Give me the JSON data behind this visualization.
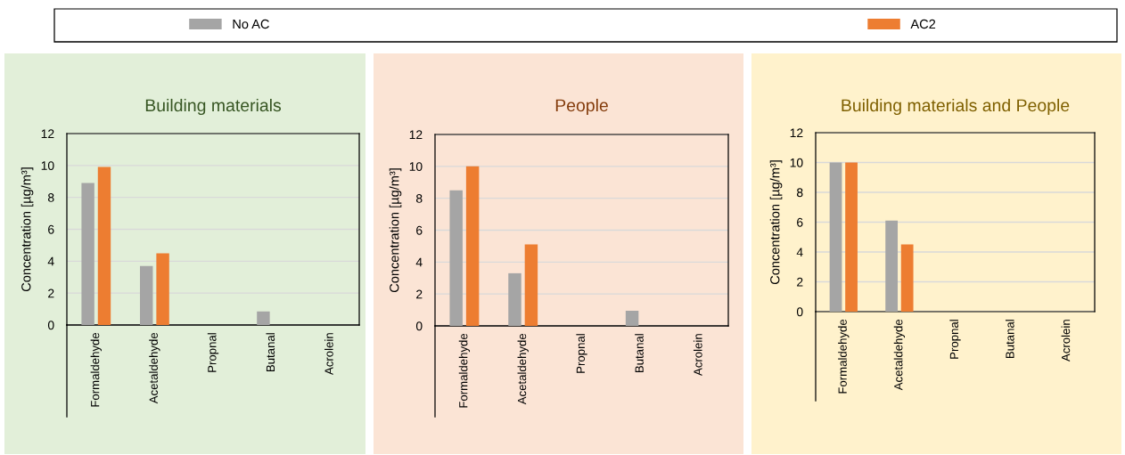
{
  "chart_data": [
    {
      "type": "bar",
      "title": "Building materials",
      "ylabel": "Concentration [µg/m³]",
      "categories": [
        "Formaldehyde",
        "Acetaldehyde",
        "Propnal",
        "Butanal",
        "Acrolein"
      ],
      "series": [
        {
          "name": "No AC",
          "color": "#a5a5a5",
          "values": [
            8.9,
            3.7,
            0,
            0.85,
            0
          ]
        },
        {
          "name": "AC2",
          "color": "#ed7d31",
          "values": [
            9.9,
            4.5,
            0,
            0,
            0
          ]
        }
      ],
      "ylim": [
        0,
        12
      ],
      "yticks": [
        0,
        2,
        4,
        6,
        8,
        10,
        12
      ],
      "grid": "y",
      "legend": "top"
    },
    {
      "type": "bar",
      "title": "People",
      "ylabel": "Concentration [µg/m³]",
      "categories": [
        "Formaldehyde",
        "Acetaldehyde",
        "Propnal",
        "Butanal",
        "Acrolein"
      ],
      "series": [
        {
          "color": "#a5a5a5",
          "values": [
            8.5,
            3.3,
            0,
            0.95,
            0
          ]
        },
        {
          "color": "#ed7d31",
          "values": [
            10,
            5.1,
            0,
            0,
            0
          ]
        }
      ],
      "ylim": [
        0,
        12
      ],
      "yticks": [
        0,
        2,
        4,
        6,
        8,
        10,
        12
      ],
      "grid": "y"
    },
    {
      "type": "bar",
      "title": "Building materials and People",
      "ylabel": "Concentration [µg/m³]",
      "categories": [
        "Formaldehyde",
        "Acetaldehyde",
        "Propnal",
        "Butanal",
        "Acrolein"
      ],
      "series": [
        {
          "color": "#a5a5a5",
          "values": [
            10,
            6.1,
            0,
            0,
            0
          ]
        },
        {
          "color": "#ed7d31",
          "values": [
            10,
            4.5,
            0,
            0,
            0
          ]
        }
      ],
      "ylim": [
        0,
        12
      ],
      "yticks": [
        0,
        2,
        4,
        6,
        8,
        10,
        12
      ],
      "grid": "y"
    }
  ]
}
